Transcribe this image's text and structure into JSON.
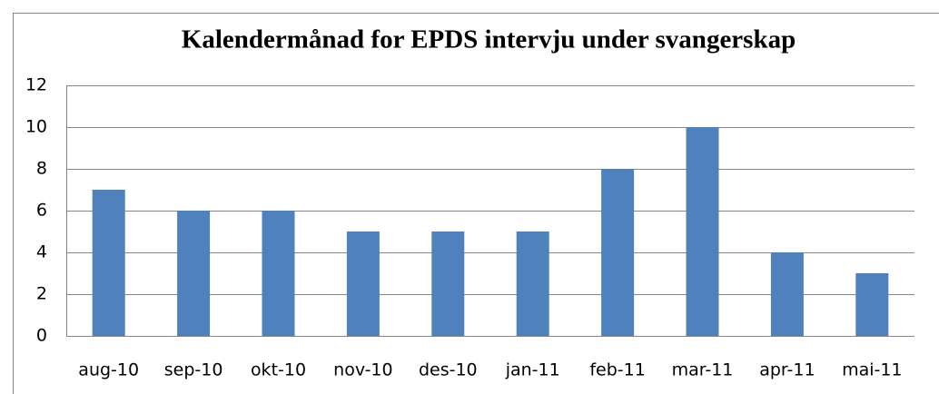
{
  "chart_data": {
    "type": "bar",
    "title": "Kalendermånad for EPDS intervju under svangerskap",
    "categories": [
      "aug-10",
      "sep-10",
      "okt-10",
      "nov-10",
      "des-10",
      "jan-11",
      "feb-11",
      "mar-11",
      "apr-11",
      "mai-11"
    ],
    "values": [
      7,
      6,
      6,
      5,
      5,
      5,
      8,
      10,
      4,
      3
    ],
    "color": "#4f81bd",
    "ylim": [
      0,
      12
    ],
    "yticks": [
      0,
      2,
      4,
      6,
      8,
      10,
      12
    ],
    "grid": true
  }
}
